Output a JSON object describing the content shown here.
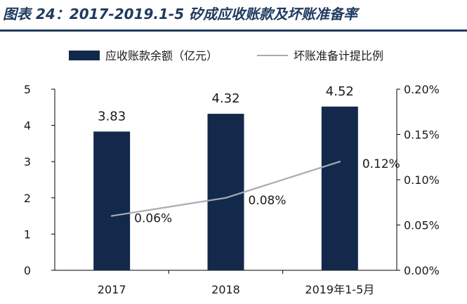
{
  "figure_title": "图表 24：2017-2019.1-5 矽成应收账款及坏账准备率",
  "chart_data": {
    "type": "bar",
    "categories": [
      "2017",
      "2018",
      "2019年1-5月"
    ],
    "series": [
      {
        "name": "应收账款余额（亿元）",
        "type": "bar",
        "axis": "left",
        "values": [
          3.83,
          4.32,
          4.52
        ],
        "labels": [
          "3.83",
          "4.32",
          "4.52"
        ],
        "color": "#13294b"
      },
      {
        "name": "坏账准备计提比例",
        "type": "line",
        "axis": "right",
        "values": [
          0.06,
          0.08,
          0.12
        ],
        "labels": [
          "0.06%",
          "0.08%",
          "0.12%"
        ],
        "color": "#a6abb3"
      }
    ],
    "y_left": {
      "min": 0,
      "max": 5,
      "ticks": [
        "0",
        "1",
        "2",
        "3",
        "4",
        "5"
      ]
    },
    "y_right": {
      "min": 0,
      "max": 0.2,
      "ticks": [
        "0.00%",
        "0.05%",
        "0.10%",
        "0.15%",
        "0.20%"
      ]
    },
    "legend_position": "top",
    "grid": false
  }
}
